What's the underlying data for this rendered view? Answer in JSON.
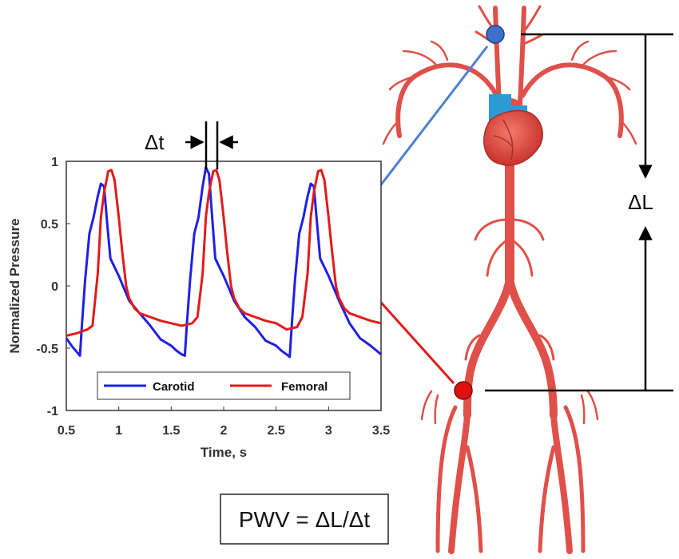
{
  "chart_data": {
    "type": "line",
    "xlabel": "Time, s",
    "ylabel": "Normalized Pressure",
    "xlim": [
      0.5,
      3.5
    ],
    "ylim": [
      -1,
      1
    ],
    "xticks": [
      "0.5",
      "1",
      "1.5",
      "2",
      "2.5",
      "3",
      "3.5"
    ],
    "yticks": [
      "1",
      "0.5",
      "0",
      "-0.5",
      "-1"
    ],
    "grid": false,
    "legend": "bottom",
    "series": [
      {
        "name": "Carotid",
        "color": "#1f1fe6",
        "x": [
          0.5,
          0.55,
          0.6,
          0.63,
          0.65,
          0.68,
          0.72,
          0.76,
          0.8,
          0.83,
          0.86,
          0.89,
          0.92,
          0.96,
          1.0,
          1.05,
          1.1,
          1.2,
          1.3,
          1.4,
          1.5,
          1.55,
          1.6,
          1.63,
          1.65,
          1.68,
          1.72,
          1.76,
          1.8,
          1.83,
          1.86,
          1.89,
          1.92,
          1.96,
          2.0,
          2.05,
          2.1,
          2.2,
          2.3,
          2.4,
          2.5,
          2.55,
          2.6,
          2.63,
          2.65,
          2.68,
          2.72,
          2.76,
          2.8,
          2.83,
          2.86,
          2.89,
          2.92,
          2.96,
          3.0,
          3.05,
          3.1,
          3.2,
          3.3,
          3.4,
          3.5
        ],
        "y": [
          -0.42,
          -0.48,
          -0.53,
          -0.56,
          -0.3,
          0.05,
          0.42,
          0.55,
          0.72,
          0.82,
          0.8,
          0.5,
          0.22,
          0.15,
          0.08,
          -0.02,
          -0.12,
          -0.22,
          -0.32,
          -0.43,
          -0.48,
          -0.52,
          -0.55,
          -0.56,
          -0.3,
          0.05,
          0.42,
          0.55,
          0.8,
          0.95,
          0.9,
          0.55,
          0.22,
          0.15,
          0.08,
          -0.02,
          -0.12,
          -0.25,
          -0.33,
          -0.44,
          -0.48,
          -0.52,
          -0.55,
          -0.57,
          -0.3,
          0.05,
          0.42,
          0.55,
          0.72,
          0.82,
          0.8,
          0.5,
          0.22,
          0.15,
          0.08,
          -0.02,
          -0.12,
          -0.3,
          -0.42,
          -0.48,
          -0.55
        ]
      },
      {
        "name": "Femoral",
        "color": "#e41a1a",
        "x": [
          0.5,
          0.6,
          0.7,
          0.75,
          0.8,
          0.83,
          0.86,
          0.9,
          0.93,
          0.96,
          1.0,
          1.03,
          1.07,
          1.1,
          1.15,
          1.2,
          1.3,
          1.4,
          1.5,
          1.6,
          1.7,
          1.75,
          1.8,
          1.83,
          1.86,
          1.9,
          1.93,
          1.96,
          2.0,
          2.03,
          2.07,
          2.1,
          2.15,
          2.2,
          2.3,
          2.4,
          2.5,
          2.6,
          2.7,
          2.75,
          2.8,
          2.83,
          2.86,
          2.9,
          2.93,
          2.96,
          3.0,
          3.03,
          3.07,
          3.1,
          3.15,
          3.2,
          3.3,
          3.4,
          3.5
        ],
        "y": [
          -0.4,
          -0.38,
          -0.35,
          -0.32,
          0.1,
          0.55,
          0.75,
          0.92,
          0.93,
          0.85,
          0.55,
          0.3,
          0.0,
          -0.1,
          -0.18,
          -0.22,
          -0.25,
          -0.28,
          -0.3,
          -0.32,
          -0.3,
          -0.25,
          0.1,
          0.55,
          0.75,
          0.92,
          0.93,
          0.85,
          0.55,
          0.3,
          0.0,
          -0.1,
          -0.18,
          -0.22,
          -0.25,
          -0.28,
          -0.3,
          -0.35,
          -0.33,
          -0.25,
          0.1,
          0.55,
          0.75,
          0.92,
          0.93,
          0.85,
          0.55,
          0.3,
          0.0,
          -0.1,
          -0.18,
          -0.22,
          -0.25,
          -0.28,
          -0.3
        ]
      }
    ]
  },
  "diagram": {
    "delta_t": "Δt",
    "delta_l": "ΔL",
    "formula": "PWV = ΔL/Δt"
  },
  "colors": {
    "artery": "#e0504a",
    "artery_dark": "#c03a35",
    "heart": "#e8524a",
    "vein_blue": "#2b9bd6",
    "carotid_site": "#3f6fc9",
    "femoral_site": "#e01010",
    "blue_arrow": "#4f7fd0",
    "red_arrow": "#e01a1a"
  }
}
